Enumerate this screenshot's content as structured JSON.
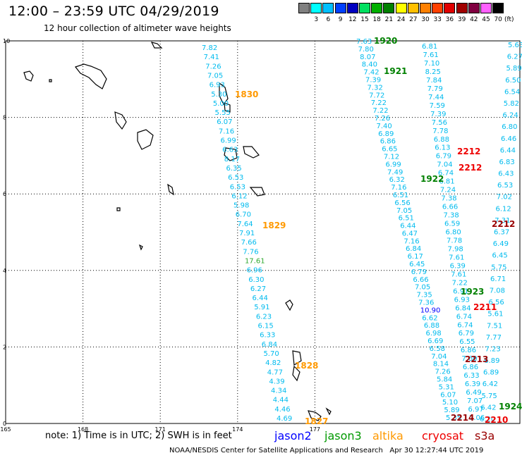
{
  "header": {
    "title": "12:00 – 23:59 UTC 04/29/2019",
    "subtitle": "12 hour collection of altimeter wave heights"
  },
  "scale": {
    "labels": [
      "",
      "3",
      "6",
      "9",
      "12",
      "15",
      "18",
      "21",
      "24",
      "27",
      "30",
      "33",
      "36",
      "39",
      "42",
      "45",
      "70"
    ],
    "colors": [
      "#808080",
      "#00ffff",
      "#00bfff",
      "#0040ff",
      "#0000c0",
      "#00e060",
      "#00b000",
      "#008000",
      "#ffff00",
      "#ffc000",
      "#ff8000",
      "#ff4000",
      "#e00000",
      "#a00000",
      "#800040",
      "#ff60ff",
      "#000000"
    ],
    "unit": "(ft)"
  },
  "axes": {
    "x_labels": [
      {
        "value": 165,
        "text": "165"
      },
      {
        "value": 168,
        "text": "168"
      },
      {
        "value": 171,
        "text": "171"
      },
      {
        "value": 174,
        "text": "174"
      },
      {
        "value": 177,
        "text": "177"
      }
    ],
    "y_labels": [
      {
        "value": 0,
        "text": "0"
      },
      {
        "value": 2,
        "text": "2"
      },
      {
        "value": 4,
        "text": "4"
      },
      {
        "value": 6,
        "text": "6"
      },
      {
        "value": 8,
        "text": "8"
      },
      {
        "value": 10,
        "text": "10"
      }
    ]
  },
  "colors": {
    "cyan": "#00bbee",
    "lightgreen": "#2ea82e",
    "darkgreen": "#008000",
    "orange": "#ff9900",
    "red": "#ee0000",
    "darkred": "#990000",
    "blue": "#0000ff",
    "green": "#009900"
  },
  "swh_values": {
    "track_a": [
      "7.82",
      "7.41",
      "7.26",
      "7.05",
      "6.93",
      "5.30",
      "5.00",
      "5.55",
      "6.07",
      "7.16",
      "6.99",
      "6.63",
      "8.17",
      "6.35",
      "6.53",
      "6.53",
      "6.12",
      "5.98",
      "6.70",
      "7.64",
      "7.91",
      "7.66",
      "7.76",
      "17.61",
      "6.96",
      "6.30",
      "6.27",
      "6.44",
      "5.91",
      "6.23",
      "6.15",
      "6.33",
      "6.84",
      "5.70",
      "4.82",
      "4.77",
      "4.39",
      "4.34",
      "4.44",
      "4.46",
      "4.69"
    ],
    "track_b": [
      "7.63",
      "7.80",
      "8.07",
      "8.40",
      "7.42",
      "7.39",
      "7.32",
      "7.72",
      "7.22",
      "7.22",
      "7.26",
      "7.40",
      "6.89",
      "6.86",
      "6.65",
      "7.12",
      "6.99",
      "7.49",
      "6.32",
      "7.16",
      "6.51",
      "6.56",
      "7.05",
      "6.51",
      "6.44",
      "6.47",
      "7.16",
      "6.84",
      "6.17",
      "6.45",
      "6.79",
      "6.66",
      "7.05",
      "7.35",
      "7.36",
      "10.90",
      "6.62",
      "6.88",
      "6.98",
      "6.69",
      "6.58",
      "7.04",
      "8.14",
      "7.26",
      "5.84",
      "5.31",
      "6.07",
      "5.10",
      "5.89",
      "5.35"
    ],
    "track_c": [
      "6.81",
      "7.61",
      "7.10",
      "8.25",
      "7.84",
      "7.79",
      "7.44",
      "7.59",
      "7.39",
      "7.56",
      "7.78",
      "6.88",
      "6.13",
      "6.79",
      "7.04",
      "6.74",
      "6.81",
      "7.24",
      "7.38",
      "6.66",
      "7.38",
      "6.59",
      "6.80",
      "7.78",
      "7.98",
      "7.61",
      "6.39",
      "7.61",
      "7.22",
      "6.91",
      "6.93",
      "6.84",
      "6.74",
      "6.74",
      "6.79",
      "6.55",
      "6.86",
      "7.60",
      "6.86",
      "6.33",
      "6.39",
      "6.49",
      "7.07",
      "6.97",
      "7.06"
    ],
    "track_d": [
      "5.63",
      "6.27",
      "5.89",
      "6.50",
      "6.54",
      "5.82",
      "6.24",
      "6.80",
      "6.46",
      "6.44",
      "6.83",
      "6.43",
      "6.53",
      "7.02",
      "6.12",
      "7.31",
      "6.37",
      "6.49",
      "6.45",
      "5.75",
      "6.71",
      "7.08",
      "6.56",
      "5.61",
      "7.51",
      "7.77",
      "7.23",
      "6.89",
      "6.89",
      "6.42",
      "5.75",
      "6.42",
      "6.20"
    ]
  },
  "time_labels": [
    {
      "text": "1830",
      "color": "orange"
    },
    {
      "text": "1829",
      "color": "orange"
    },
    {
      "text": "1828",
      "color": "orange"
    },
    {
      "text": "1827",
      "color": "orange"
    },
    {
      "text": "1920",
      "color": "darkgreen"
    },
    {
      "text": "1921",
      "color": "darkgreen"
    },
    {
      "text": "1922",
      "color": "darkgreen"
    },
    {
      "text": "1923",
      "color": "darkgreen"
    },
    {
      "text": "1924",
      "color": "darkgreen"
    },
    {
      "text": "2212",
      "color": "red"
    },
    {
      "text": "2212",
      "color": "red"
    },
    {
      "text": "2212",
      "color": "darkred"
    },
    {
      "text": "2211",
      "color": "red"
    },
    {
      "text": "2213",
      "color": "darkred"
    },
    {
      "text": "2214",
      "color": "darkred"
    },
    {
      "text": "2210",
      "color": "red"
    }
  ],
  "note": "note: 1) Time is in UTC; 2) SWH is in feet",
  "satellites": [
    {
      "name": "jason2",
      "color": "#0000ff"
    },
    {
      "name": "jason3",
      "color": "#009900"
    },
    {
      "name": "altika",
      "color": "#ff9900"
    },
    {
      "name": "cryosat",
      "color": "#ee0000"
    },
    {
      "name": "s3a",
      "color": "#990000"
    }
  ],
  "footer": "NOAA/NESDIS Center for Satellite Applications and Research   Apr 30 12:27:44 UTC 2019"
}
